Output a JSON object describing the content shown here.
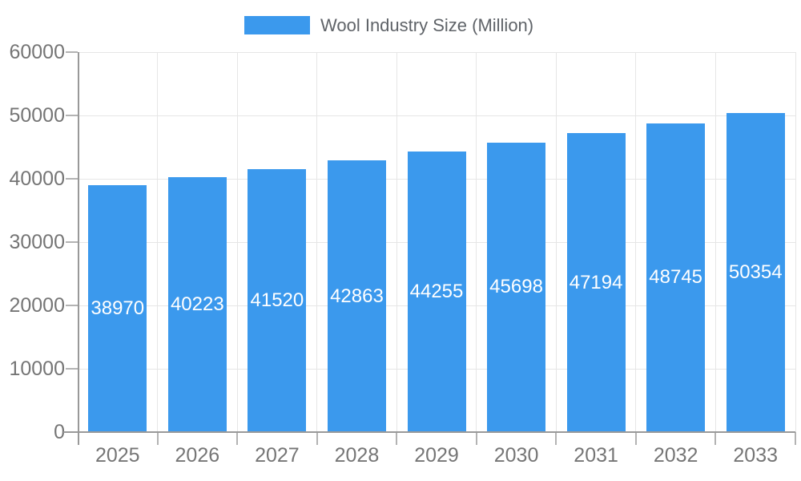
{
  "legend": {
    "label": "Wool Industry Size (Million)",
    "swatch_color": "#3b99ed"
  },
  "chart_data": {
    "type": "bar",
    "title": "Wool Industry Size (Million)",
    "series_name": "Wool Industry Size (Million)",
    "categories": [
      "2025",
      "2026",
      "2027",
      "2028",
      "2029",
      "2030",
      "2031",
      "2032",
      "2033"
    ],
    "values": [
      38970,
      40223,
      41520,
      42863,
      44255,
      45698,
      47194,
      48745,
      50354
    ],
    "xlabel": "",
    "ylabel": "",
    "ylim": [
      0,
      60000
    ],
    "yticks": [
      0,
      10000,
      20000,
      30000,
      40000,
      50000,
      60000
    ],
    "bar_color": "#3b99ed",
    "bar_label_color": "#ffffff",
    "grid": true,
    "legend_position": "top"
  }
}
